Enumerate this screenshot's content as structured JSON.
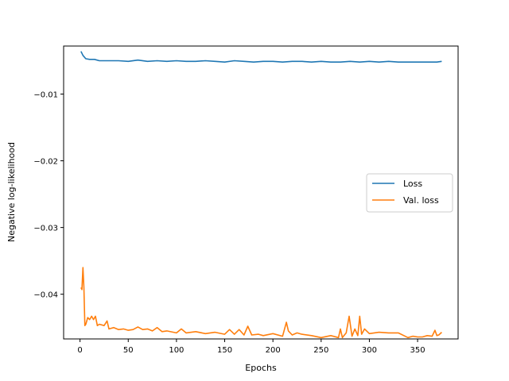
{
  "chart_data": {
    "type": "line",
    "title": "",
    "xlabel": "Epochs",
    "ylabel": "Negative log-likelihood",
    "xlim": [
      -17,
      392
    ],
    "ylim": [
      -0.0467,
      -0.0028
    ],
    "x_ticks": [
      0,
      50,
      100,
      150,
      200,
      250,
      300,
      350
    ],
    "y_ticks": [
      -0.04,
      -0.03,
      -0.02,
      -0.01
    ],
    "x_tick_labels": [
      "0",
      "50",
      "100",
      "150",
      "200",
      "250",
      "300",
      "350"
    ],
    "y_tick_labels": [
      "−0.04",
      "−0.03",
      "−0.02",
      "−0.01"
    ],
    "grid": false,
    "legend": {
      "placement": "center-right",
      "entries": [
        "Loss",
        "Val. loss"
      ]
    },
    "series": [
      {
        "name": "Loss",
        "color": "#1f77b4",
        "x": [
          1,
          3,
          6,
          10,
          15,
          20,
          30,
          40,
          50,
          60,
          70,
          80,
          90,
          100,
          110,
          120,
          130,
          140,
          150,
          160,
          170,
          180,
          190,
          200,
          210,
          220,
          230,
          240,
          250,
          260,
          270,
          280,
          290,
          300,
          310,
          320,
          330,
          340,
          350,
          360,
          370,
          375
        ],
        "y": [
          -0.0036,
          -0.0042,
          -0.0047,
          -0.0048,
          -0.0048,
          -0.005,
          -0.005,
          -0.005,
          -0.0051,
          -0.0049,
          -0.0051,
          -0.005,
          -0.0051,
          -0.005,
          -0.0051,
          -0.0051,
          -0.005,
          -0.0051,
          -0.0052,
          -0.005,
          -0.0051,
          -0.0052,
          -0.0051,
          -0.0051,
          -0.0052,
          -0.0051,
          -0.0051,
          -0.0052,
          -0.0051,
          -0.0052,
          -0.0052,
          -0.0051,
          -0.0052,
          -0.0051,
          -0.0052,
          -0.0051,
          -0.0052,
          -0.0052,
          -0.0052,
          -0.0052,
          -0.0052,
          -0.0051
        ]
      },
      {
        "name": "Val. loss",
        "color": "#ff7f0e",
        "x": [
          1,
          2,
          3,
          4,
          5,
          6,
          8,
          10,
          12,
          14,
          16,
          18,
          20,
          25,
          28,
          30,
          35,
          40,
          45,
          50,
          55,
          60,
          65,
          70,
          75,
          80,
          85,
          90,
          100,
          105,
          110,
          120,
          130,
          140,
          150,
          155,
          160,
          165,
          170,
          174,
          178,
          185,
          190,
          200,
          210,
          214,
          216,
          220,
          225,
          230,
          240,
          250,
          260,
          268,
          270,
          272,
          276,
          279,
          282,
          285,
          288,
          290,
          292,
          295,
          300,
          310,
          320,
          330,
          340,
          345,
          350,
          355,
          360,
          365,
          368,
          370,
          372,
          375
        ],
        "y": [
          -0.039,
          -0.0393,
          -0.036,
          -0.039,
          -0.0447,
          -0.0445,
          -0.0435,
          -0.0438,
          -0.0433,
          -0.0438,
          -0.0433,
          -0.0447,
          -0.0445,
          -0.0447,
          -0.044,
          -0.0452,
          -0.045,
          -0.0453,
          -0.0452,
          -0.0454,
          -0.0453,
          -0.0449,
          -0.0453,
          -0.0452,
          -0.0455,
          -0.045,
          -0.0456,
          -0.0455,
          -0.0458,
          -0.0452,
          -0.0458,
          -0.0456,
          -0.0459,
          -0.0457,
          -0.046,
          -0.0453,
          -0.046,
          -0.0453,
          -0.0461,
          -0.0448,
          -0.0461,
          -0.046,
          -0.0462,
          -0.0459,
          -0.0463,
          -0.0442,
          -0.0455,
          -0.0461,
          -0.0458,
          -0.046,
          -0.0462,
          -0.0465,
          -0.0462,
          -0.0465,
          -0.0452,
          -0.0465,
          -0.0458,
          -0.0433,
          -0.0463,
          -0.0452,
          -0.0462,
          -0.0433,
          -0.046,
          -0.0452,
          -0.0459,
          -0.0457,
          -0.0458,
          -0.0458,
          -0.0465,
          -0.0463,
          -0.0464,
          -0.0464,
          -0.0462,
          -0.0463,
          -0.0454,
          -0.0462,
          -0.0461,
          -0.0457
        ]
      }
    ]
  }
}
